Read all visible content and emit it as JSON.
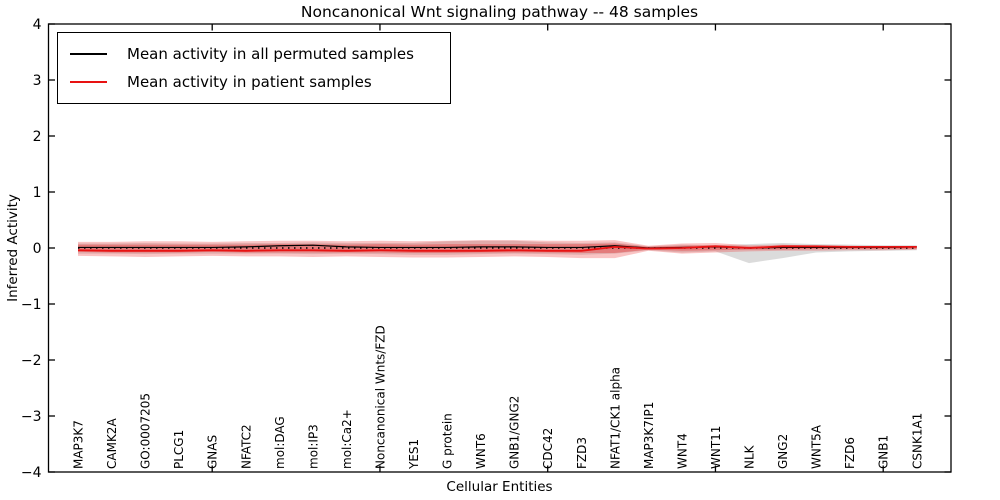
{
  "title": "Noncanonical Wnt signaling pathway -- 48 samples",
  "chart_data": {
    "type": "line",
    "title": "Noncanonical Wnt signaling pathway -- 48 samples",
    "xlabel": "Cellular Entities",
    "ylabel": "Inferred Activity",
    "ylim": [
      -4,
      4
    ],
    "xlim": [
      -1,
      26
    ],
    "grid": false,
    "legend_position": "upper left",
    "yticks": [
      4,
      3,
      2,
      1,
      0,
      -1,
      -2,
      -3,
      -4
    ],
    "ytick_labels": [
      "4",
      "3",
      "2",
      "1",
      "0",
      "−1",
      "−2",
      "−3",
      "−4"
    ],
    "xtick_major_indices": [
      4,
      9,
      14,
      19,
      24
    ],
    "categories": [
      "MAP3K7",
      "CAMK2A",
      "GO:0007205",
      "PLCG1",
      "GNAS",
      "NFATC2",
      "mol:DAG",
      "mol:IP3",
      "mol:Ca2+",
      "Noncanonical Wnts/FZD",
      "YES1",
      "G protein",
      "WNT6",
      "GNB1/GNG2",
      "CDC42",
      "FZD3",
      "NFAT1/CK1 alpha",
      "MAP3K7IP1",
      "WNT4",
      "WNT11",
      "NLK",
      "GNG2",
      "WNT5A",
      "FZD6",
      "GNB1",
      "CSNK1A1"
    ],
    "zero_line": {
      "y": 0,
      "style": "dotted",
      "color": "#000000"
    },
    "series": [
      {
        "name": "Mean activity in all permuted samples",
        "color": "#000000",
        "width": 1.2,
        "values": [
          0.01,
          0.01,
          0.01,
          0.01,
          0.01,
          0.02,
          0.04,
          0.05,
          0.02,
          0.01,
          0.01,
          0.01,
          0.02,
          0.02,
          0.01,
          0.01,
          0.04,
          0.0,
          0.01,
          0.02,
          0.0,
          0.01,
          0.01,
          0.01,
          0.01,
          0.02
        ]
      },
      {
        "name": "Mean activity in patient samples",
        "color": "#e81212",
        "width": 1.8,
        "values": [
          -0.04,
          -0.05,
          -0.05,
          -0.05,
          -0.04,
          -0.05,
          -0.04,
          -0.04,
          -0.05,
          -0.04,
          -0.05,
          -0.05,
          -0.05,
          -0.04,
          -0.05,
          -0.05,
          0.02,
          -0.01,
          0.0,
          0.03,
          0.0,
          0.03,
          0.03,
          0.02,
          0.02,
          0.02
        ]
      }
    ],
    "bands": [
      {
        "name": "permuted-samples-spread",
        "color": "#999999",
        "opacity": 0.35,
        "upper": [
          0.08,
          0.08,
          0.09,
          0.08,
          0.08,
          0.09,
          0.09,
          0.1,
          0.09,
          0.09,
          0.09,
          0.12,
          0.13,
          0.13,
          0.1,
          0.09,
          0.1,
          0.03,
          0.06,
          0.05,
          0.07,
          0.09,
          0.07,
          0.06,
          0.05,
          0.05
        ],
        "lower": [
          -0.1,
          -0.1,
          -0.11,
          -0.1,
          -0.1,
          -0.1,
          -0.1,
          -0.11,
          -0.1,
          -0.11,
          -0.12,
          -0.12,
          -0.11,
          -0.1,
          -0.11,
          -0.12,
          -0.1,
          -0.04,
          -0.08,
          -0.06,
          -0.27,
          -0.18,
          -0.08,
          -0.06,
          -0.05,
          -0.04
        ]
      },
      {
        "name": "patient-samples-spread-outer",
        "color": "#ee3b3b",
        "opacity": 0.3,
        "upper": [
          0.11,
          0.11,
          0.12,
          0.12,
          0.11,
          0.12,
          0.13,
          0.13,
          0.12,
          0.13,
          0.12,
          0.13,
          0.14,
          0.14,
          0.13,
          0.13,
          0.14,
          0.04,
          0.08,
          0.09,
          0.05,
          0.06,
          0.04,
          0.04,
          0.03,
          0.03
        ],
        "lower": [
          -0.14,
          -0.15,
          -0.16,
          -0.15,
          -0.14,
          -0.15,
          -0.15,
          -0.16,
          -0.15,
          -0.16,
          -0.17,
          -0.17,
          -0.16,
          -0.15,
          -0.16,
          -0.18,
          -0.18,
          -0.05,
          -0.1,
          -0.08,
          -0.06,
          -0.05,
          -0.05,
          -0.04,
          -0.04,
          -0.03
        ],
        "lower_note": ""
      },
      {
        "name": "patient-samples-spread-inner",
        "color": "#e53535",
        "opacity": 0.4,
        "upper": [
          0.06,
          0.06,
          0.06,
          0.06,
          0.06,
          0.06,
          0.07,
          0.07,
          0.06,
          0.07,
          0.06,
          0.07,
          0.07,
          0.07,
          0.07,
          0.07,
          0.08,
          0.02,
          0.04,
          0.05,
          0.03,
          0.03,
          0.02,
          0.02,
          0.02,
          0.02
        ],
        "lower": [
          -0.07,
          -0.08,
          -0.08,
          -0.08,
          -0.07,
          -0.08,
          -0.08,
          -0.08,
          -0.08,
          -0.08,
          -0.09,
          -0.09,
          -0.08,
          -0.08,
          -0.08,
          -0.09,
          -0.09,
          -0.03,
          -0.05,
          -0.04,
          -0.03,
          -0.03,
          -0.02,
          -0.02,
          -0.02,
          -0.02
        ]
      }
    ]
  }
}
